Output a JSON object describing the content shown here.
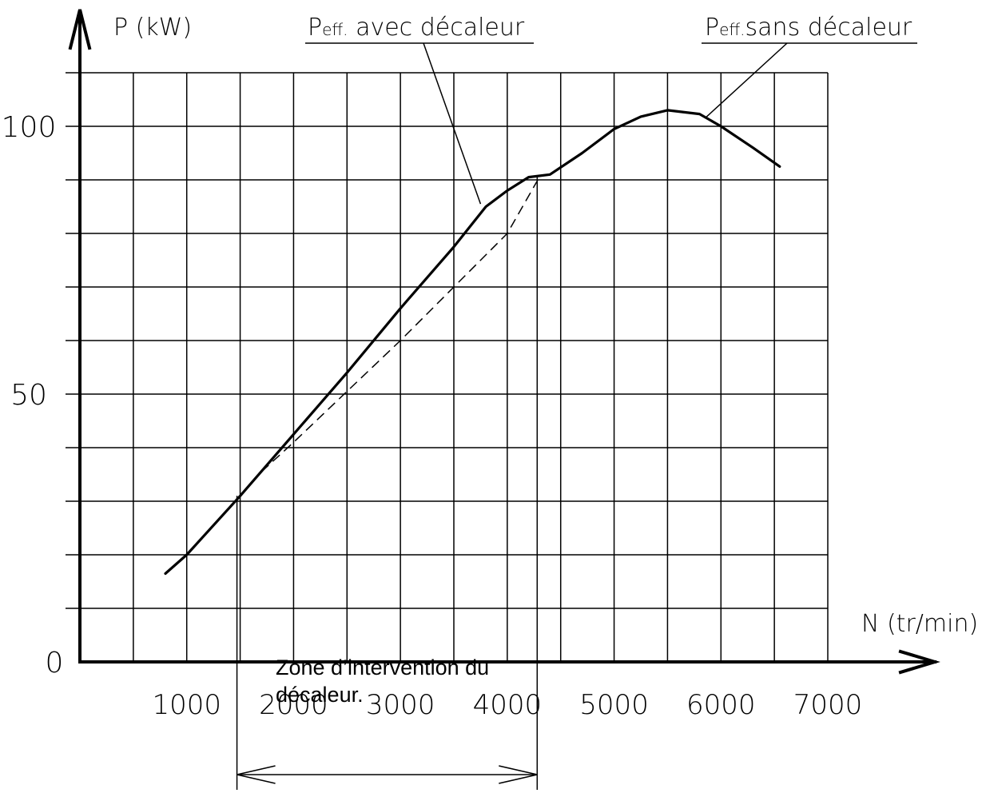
{
  "chart_data": {
    "type": "line",
    "ylabel": "P (kW)",
    "xlabel": "N (tr/min)",
    "xlim": [
      0,
      7000
    ],
    "ylim": [
      0,
      110
    ],
    "x_ticks": [
      "1000",
      "2000",
      "3000",
      "4000",
      "5000",
      "6000",
      "7000"
    ],
    "y_ticks": [
      "100",
      "50",
      "0"
    ],
    "x_grid": [
      500,
      1000,
      1500,
      2000,
      2500,
      3000,
      3500,
      4000,
      4500,
      5000,
      5500,
      6000,
      6500,
      7000
    ],
    "y_grid": [
      10,
      20,
      30,
      40,
      50,
      60,
      70,
      80,
      90,
      100,
      110
    ],
    "grid": true,
    "series": [
      {
        "name": "Peff. avec décaleur",
        "style": "solid",
        "points": [
          [
            800,
            16.5
          ],
          [
            1000,
            20
          ],
          [
            1500,
            31
          ],
          [
            2000,
            42.5
          ],
          [
            2500,
            54
          ],
          [
            3000,
            66
          ],
          [
            3500,
            77.5
          ],
          [
            3800,
            85
          ],
          [
            4000,
            88
          ],
          [
            4200,
            90.5
          ],
          [
            4400,
            91
          ],
          [
            4700,
            95
          ],
          [
            5000,
            99.5
          ],
          [
            5250,
            101.8
          ],
          [
            5500,
            103
          ],
          [
            5800,
            102.3
          ],
          [
            6000,
            100
          ],
          [
            6300,
            96
          ],
          [
            6550,
            92.5
          ]
        ]
      },
      {
        "name": "Peff. sans décaleur",
        "style": "dashed",
        "points": [
          [
            1700,
            35.5
          ],
          [
            2000,
            41
          ],
          [
            2500,
            50.5
          ],
          [
            3000,
            60
          ],
          [
            3500,
            70
          ],
          [
            4000,
            80
          ],
          [
            4300,
            90.5
          ]
        ]
      }
    ],
    "annotations": [
      {
        "text_main": "P",
        "text_sub": "eff.",
        "text_rest": " avec décaleur",
        "target": [
          3750,
          85.5
        ]
      },
      {
        "text_main": "P",
        "text_sub": "eff.",
        "text_rest": "sans décaleur",
        "target": [
          5850,
          101.5
        ]
      }
    ],
    "zone": {
      "label_line1": "Zone d’intervention du",
      "label_line2": "décaleur.",
      "from": 1470,
      "to": 4280
    }
  }
}
